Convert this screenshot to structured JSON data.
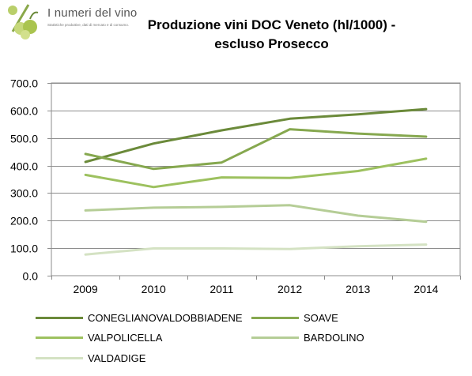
{
  "logo": {
    "name": "I numeri del vino",
    "tagline": "Statistiche produttive, dati di mercato e di consumo.",
    "icon": "percent-grapes-icon"
  },
  "chart_data": {
    "type": "line",
    "title_line1": "Produzione vini DOC Veneto (hl/1000) -",
    "title_line2": "escluso Prosecco",
    "categories": [
      "2009",
      "2010",
      "2011",
      "2012",
      "2013",
      "2014"
    ],
    "ylim": [
      0,
      700
    ],
    "yticks": [
      "0.0",
      "100.0",
      "200.0",
      "300.0",
      "400.0",
      "500.0",
      "600.0",
      "700.0"
    ],
    "grid": true,
    "legend_position": "bottom",
    "series": [
      {
        "name": "CONEGLIANOVALDOBBIADENE",
        "color": "#6b8a3a",
        "values": [
          413,
          480,
          528,
          570,
          586,
          605
        ]
      },
      {
        "name": "SOAVE",
        "color": "#86a84f",
        "values": [
          442,
          388,
          411,
          532,
          516,
          505
        ]
      },
      {
        "name": "VALPOLICELLA",
        "color": "#9dc15f",
        "values": [
          366,
          322,
          357,
          355,
          380,
          425
        ]
      },
      {
        "name": "BARDOLINO",
        "color": "#b5cd96",
        "values": [
          237,
          247,
          250,
          256,
          218,
          196
        ]
      },
      {
        "name": "VALDADIGE",
        "color": "#d4e2c3",
        "values": [
          77,
          99,
          99,
          97,
          107,
          113
        ]
      }
    ]
  }
}
